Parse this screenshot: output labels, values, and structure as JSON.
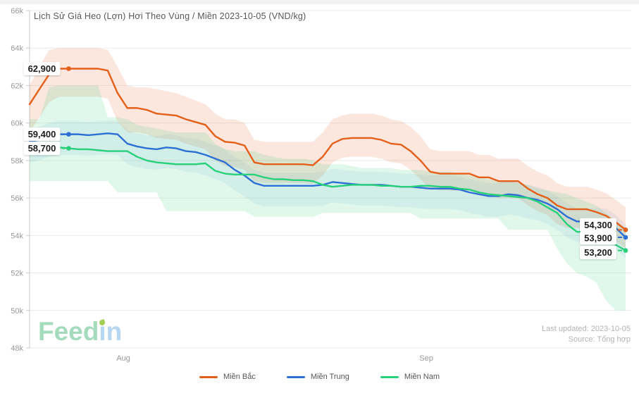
{
  "watermark": {
    "text": "Feedin",
    "feed": "Feed",
    "in": "in"
  },
  "footer": {
    "last_updated": "Last updated: 2023-10-05",
    "source": "Source: Tổng hợp"
  },
  "chart_data": {
    "type": "line",
    "title": "Lịch Sử Giá Heo (Lợn) Hơi Theo Vùng / Miền 2023-10-05 (VND/kg)",
    "unit": "thousand VND/kg",
    "grid": true,
    "legend_position": "bottom",
    "start_index": 4,
    "y_axis": {
      "min": 48,
      "max": 66,
      "tick_labels": [
        "66k",
        "64k",
        "62k",
        "60k",
        "58k",
        "56k",
        "54k",
        "52k",
        "50k",
        "48k"
      ],
      "tick_values": [
        66,
        64,
        62,
        60,
        58,
        56,
        54,
        52,
        50,
        48
      ]
    },
    "x_axis": {
      "ticks": [
        {
          "label": "Aug",
          "index": 9.6
        },
        {
          "label": "Sep",
          "index": 40.6
        }
      ]
    },
    "series": [
      {
        "name": "Miền Bắc",
        "color": "#e45f1a",
        "band_opacity": 0.15,
        "start_label": "62,900",
        "end_label": "54,300",
        "start_value": 62.9,
        "end_value": 54.3,
        "end_label_dy": -7,
        "values": [
          61.0,
          61.8,
          62.6,
          62.9,
          62.9,
          62.9,
          62.9,
          62.9,
          62.8,
          61.6,
          60.8,
          60.8,
          60.7,
          60.5,
          60.45,
          60.4,
          60.2,
          60.05,
          59.9,
          59.3,
          59.0,
          58.95,
          58.8,
          57.9,
          57.8,
          57.8,
          57.8,
          57.8,
          57.8,
          57.75,
          58.2,
          58.9,
          59.15,
          59.2,
          59.2,
          59.2,
          59.1,
          58.9,
          58.85,
          58.5,
          58.0,
          57.4,
          57.3,
          57.3,
          57.3,
          57.3,
          57.1,
          57.1,
          56.9,
          56.9,
          56.9,
          56.5,
          56.2,
          56.0,
          55.6,
          55.4,
          55.4,
          55.4,
          55.25,
          55.05,
          54.7,
          54.3
        ],
        "band_upper": [
          62.0,
          63.0,
          63.9,
          64.0,
          64.0,
          64.0,
          64.0,
          64.0,
          63.9,
          63.0,
          62.0,
          61.9,
          61.9,
          61.8,
          61.7,
          61.6,
          61.4,
          61.2,
          61.0,
          60.5,
          60.2,
          60.2,
          60.0,
          59.1,
          59.0,
          59.0,
          59.0,
          59.0,
          59.0,
          59.0,
          59.5,
          60.2,
          60.4,
          60.5,
          60.5,
          60.5,
          60.4,
          60.2,
          60.1,
          59.8,
          59.3,
          58.6,
          58.5,
          58.5,
          58.5,
          58.5,
          58.3,
          58.3,
          58.1,
          58.1,
          58.1,
          57.7,
          57.4,
          57.2,
          56.8,
          56.6,
          56.6,
          56.6,
          56.45,
          56.25,
          55.9,
          55.5
        ],
        "band_lower": [
          59.5,
          60.3,
          61.1,
          61.4,
          61.4,
          61.4,
          61.4,
          61.4,
          61.3,
          60.1,
          59.5,
          59.5,
          59.4,
          59.2,
          59.15,
          59.1,
          58.9,
          58.75,
          58.6,
          58.0,
          57.7,
          57.65,
          57.5,
          56.9,
          56.8,
          56.8,
          56.8,
          56.8,
          56.8,
          56.75,
          57.2,
          57.9,
          58.15,
          58.2,
          58.2,
          58.2,
          58.1,
          57.9,
          57.85,
          57.5,
          57.0,
          56.5,
          56.4,
          56.4,
          56.4,
          56.4,
          56.2,
          56.2,
          56.0,
          56.0,
          56.0,
          55.6,
          55.3,
          55.1,
          54.6,
          54.4,
          54.4,
          54.4,
          54.25,
          54.05,
          53.7,
          53.3
        ]
      },
      {
        "name": "Miền Trung",
        "color": "#2e6fd3",
        "band_opacity": 0.08,
        "start_label": "59,400",
        "end_label": "53,900",
        "start_value": 59.4,
        "end_value": 53.9,
        "end_label_dy": 1,
        "values": [
          59.0,
          59.1,
          59.3,
          59.4,
          59.4,
          59.4,
          59.35,
          59.4,
          59.45,
          59.4,
          58.9,
          58.75,
          58.65,
          58.6,
          58.7,
          58.65,
          58.5,
          58.45,
          58.3,
          58.1,
          57.9,
          57.5,
          57.2,
          56.8,
          56.65,
          56.65,
          56.65,
          56.65,
          56.65,
          56.65,
          56.7,
          56.85,
          56.8,
          56.75,
          56.7,
          56.7,
          56.7,
          56.65,
          56.6,
          56.6,
          56.55,
          56.5,
          56.5,
          56.5,
          56.45,
          56.3,
          56.2,
          56.1,
          56.1,
          56.2,
          56.15,
          56.0,
          55.9,
          55.7,
          55.4,
          55.0,
          54.75,
          54.75,
          54.75,
          54.75,
          54.4,
          53.9
        ],
        "band_upper": [
          59.7,
          59.8,
          60.0,
          60.1,
          60.1,
          60.1,
          60.05,
          60.1,
          60.15,
          60.1,
          59.6,
          59.45,
          59.35,
          59.3,
          59.4,
          59.35,
          59.2,
          59.15,
          59.0,
          58.8,
          58.6,
          58.2,
          57.9,
          57.5,
          57.35,
          57.35,
          57.35,
          57.35,
          57.35,
          57.35,
          57.4,
          57.55,
          57.5,
          57.45,
          57.4,
          57.4,
          57.4,
          57.35,
          57.3,
          57.3,
          57.25,
          57.2,
          57.2,
          57.2,
          57.15,
          57.0,
          56.9,
          56.8,
          56.8,
          56.9,
          56.85,
          56.7,
          56.6,
          56.4,
          56.1,
          55.7,
          55.45,
          55.45,
          55.45,
          55.45,
          55.1,
          54.6
        ],
        "band_lower": [
          57.9,
          58.0,
          58.2,
          58.3,
          58.3,
          58.3,
          58.25,
          58.3,
          58.35,
          58.3,
          57.8,
          57.65,
          57.55,
          57.5,
          57.6,
          57.55,
          57.4,
          57.35,
          57.2,
          57.0,
          56.8,
          56.4,
          56.1,
          55.7,
          55.55,
          55.55,
          55.55,
          55.55,
          55.55,
          55.55,
          55.6,
          55.75,
          55.7,
          55.65,
          55.6,
          55.6,
          55.6,
          55.55,
          55.5,
          55.5,
          55.45,
          55.4,
          55.4,
          55.4,
          55.35,
          55.2,
          55.1,
          55.0,
          55.0,
          55.1,
          55.05,
          54.9,
          54.8,
          54.6,
          54.3,
          53.9,
          53.65,
          53.65,
          53.65,
          53.65,
          53.3,
          52.8
        ]
      },
      {
        "name": "Miền Nam",
        "color": "#29d07a",
        "band_opacity": 0.15,
        "start_label": "58,700",
        "end_label": "53,200",
        "start_value": 58.7,
        "end_value": 53.2,
        "end_label_dy": 3,
        "values": [
          58.7,
          58.7,
          58.7,
          58.7,
          58.65,
          58.6,
          58.6,
          58.55,
          58.5,
          58.5,
          58.5,
          58.2,
          58.0,
          57.9,
          57.85,
          57.8,
          57.8,
          57.8,
          57.85,
          57.45,
          57.3,
          57.25,
          57.25,
          57.25,
          57.1,
          57.0,
          57.0,
          56.95,
          56.95,
          56.9,
          56.7,
          56.6,
          56.65,
          56.7,
          56.7,
          56.7,
          56.65,
          56.65,
          56.6,
          56.6,
          56.65,
          56.65,
          56.6,
          56.6,
          56.5,
          56.45,
          56.3,
          56.2,
          56.15,
          56.1,
          56.05,
          56.0,
          55.8,
          55.5,
          55.2,
          54.6,
          54.2,
          54.15,
          54.05,
          53.7,
          53.5,
          53.2
        ],
        "band_upper": [
          60.2,
          60.2,
          61.9,
          62.0,
          62.0,
          62.0,
          62.0,
          62.0,
          60.3,
          60.3,
          60.2,
          59.9,
          59.8,
          59.7,
          59.6,
          59.5,
          59.5,
          59.5,
          59.5,
          58.9,
          58.6,
          58.5,
          58.5,
          58.5,
          58.3,
          58.2,
          58.1,
          58.1,
          58.1,
          58.0,
          57.8,
          57.8,
          57.8,
          57.7,
          57.6,
          57.6,
          57.6,
          57.6,
          57.5,
          57.5,
          57.5,
          57.4,
          57.4,
          57.4,
          57.3,
          57.2,
          57.1,
          57.0,
          56.9,
          56.9,
          56.8,
          56.7,
          56.5,
          56.4,
          56.3,
          56.2,
          56.0,
          55.8,
          55.6,
          55.2,
          54.8,
          54.4
        ],
        "band_lower": [
          56.9,
          56.9,
          56.9,
          56.9,
          56.9,
          56.9,
          56.9,
          56.9,
          56.9,
          56.3,
          56.3,
          56.3,
          56.3,
          56.3,
          55.3,
          55.3,
          55.3,
          55.3,
          55.3,
          55.3,
          55.3,
          55.3,
          55.3,
          55.0,
          55.0,
          55.0,
          55.0,
          55.0,
          55.0,
          55.0,
          55.2,
          55.2,
          55.2,
          55.2,
          55.2,
          55.2,
          55.2,
          55.2,
          55.2,
          55.2,
          54.9,
          54.9,
          54.9,
          54.9,
          54.9,
          54.9,
          54.9,
          54.9,
          54.9,
          54.3,
          54.3,
          54.3,
          54.3,
          54.3,
          53.3,
          52.5,
          52.0,
          51.8,
          51.5,
          50.5,
          50.0,
          50.0
        ]
      }
    ]
  }
}
